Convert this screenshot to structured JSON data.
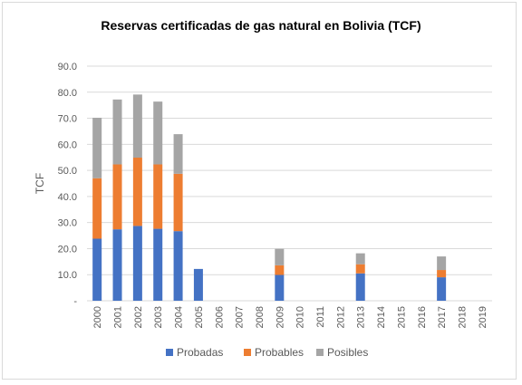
{
  "chart_data": {
    "type": "bar",
    "stacked": true,
    "title": "Reservas certificadas de gas natural en Bolivia (TCF)",
    "xlabel": "",
    "ylabel": "TCF",
    "ylim": [
      0,
      90
    ],
    "grid": true,
    "legend_position": "bottom",
    "y_ticks": [
      "-",
      "10.0",
      "20.0",
      "30.0",
      "40.0",
      "50.0",
      "60.0",
      "70.0",
      "80.0",
      "90.0"
    ],
    "categories": [
      "2000",
      "2001",
      "2002",
      "2003",
      "2004",
      "2005",
      "2006",
      "2007",
      "2008",
      "2009",
      "2010",
      "2011",
      "2012",
      "2013",
      "2014",
      "2015",
      "2016",
      "2017",
      "2018",
      "2019"
    ],
    "series": [
      {
        "name": "Probadas",
        "color": "#4472C4",
        "values": [
          23.8,
          27.4,
          28.7,
          27.6,
          26.7,
          12.2,
          0,
          0,
          0,
          9.9,
          0,
          0,
          0,
          10.5,
          0,
          0,
          0,
          9.0,
          0,
          0
        ]
      },
      {
        "name": "Probables",
        "color": "#ED7D31",
        "values": [
          23.2,
          24.9,
          26.2,
          24.7,
          22.0,
          0,
          0,
          0,
          0,
          3.7,
          0,
          0,
          0,
          3.5,
          0,
          0,
          0,
          2.8,
          0,
          0
        ]
      },
      {
        "name": "Posibles",
        "color": "#A5A5A5",
        "values": [
          23.2,
          24.9,
          24.2,
          24.1,
          15.2,
          0,
          0,
          0,
          0,
          6.3,
          0,
          0,
          0,
          4.2,
          0,
          0,
          0,
          5.2,
          0,
          0
        ]
      }
    ]
  }
}
